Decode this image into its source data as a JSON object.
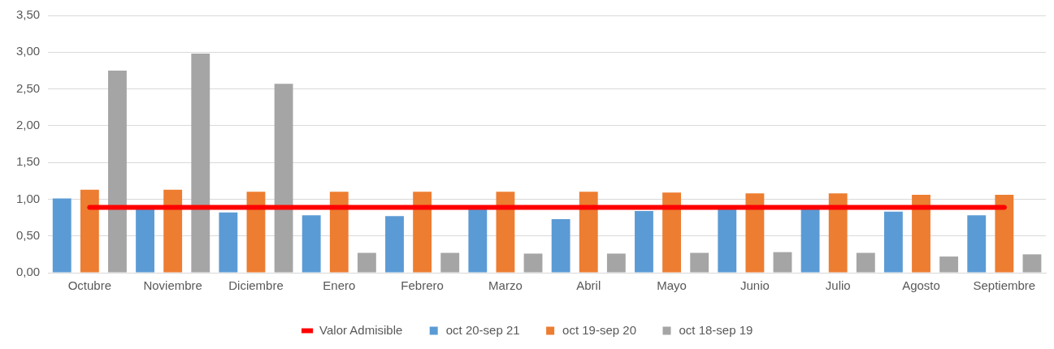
{
  "chart_data": {
    "type": "bar",
    "categories": [
      "Octubre",
      "Noviembre",
      "Diciembre",
      "Enero",
      "Febrero",
      "Marzo",
      "Abril",
      "Mayo",
      "Junio",
      "Julio",
      "Agosto",
      "Septiembre"
    ],
    "series": [
      {
        "name": "oct 20-sep 21",
        "color": "#5b9bd5",
        "values": [
          1.01,
          0.88,
          0.82,
          0.78,
          0.77,
          0.88,
          0.73,
          0.84,
          0.88,
          0.88,
          0.83,
          0.78
        ]
      },
      {
        "name": "oct 19-sep 20",
        "color": "#ed7d31",
        "values": [
          1.13,
          1.13,
          1.1,
          1.1,
          1.1,
          1.1,
          1.1,
          1.09,
          1.08,
          1.08,
          1.06,
          1.06
        ]
      },
      {
        "name": "oct 18-sep 19",
        "color": "#a5a5a5",
        "values": [
          2.75,
          2.98,
          2.57,
          0.27,
          0.27,
          0.26,
          0.26,
          0.27,
          0.28,
          0.27,
          0.22,
          0.25
        ]
      },
      {
        "name": "Valor Admisible",
        "type": "line",
        "color": "#ff0000",
        "values": [
          0.89,
          0.89,
          0.89,
          0.89,
          0.89,
          0.89,
          0.89,
          0.89,
          0.89,
          0.89,
          0.89,
          0.89
        ]
      }
    ],
    "ylim": [
      0,
      3.5
    ],
    "yticks": [
      {
        "value": 0,
        "label": "0,00"
      },
      {
        "value": 0.5,
        "label": "0,50"
      },
      {
        "value": 1,
        "label": "1,00"
      },
      {
        "value": 1.5,
        "label": "1,50"
      },
      {
        "value": 2,
        "label": "2,00"
      },
      {
        "value": 2.5,
        "label": "2,50"
      },
      {
        "value": 3,
        "label": "3,00"
      },
      {
        "value": 3.5,
        "label": "3,50"
      }
    ],
    "grid": "y",
    "legend": "bottom",
    "marker": "none"
  }
}
